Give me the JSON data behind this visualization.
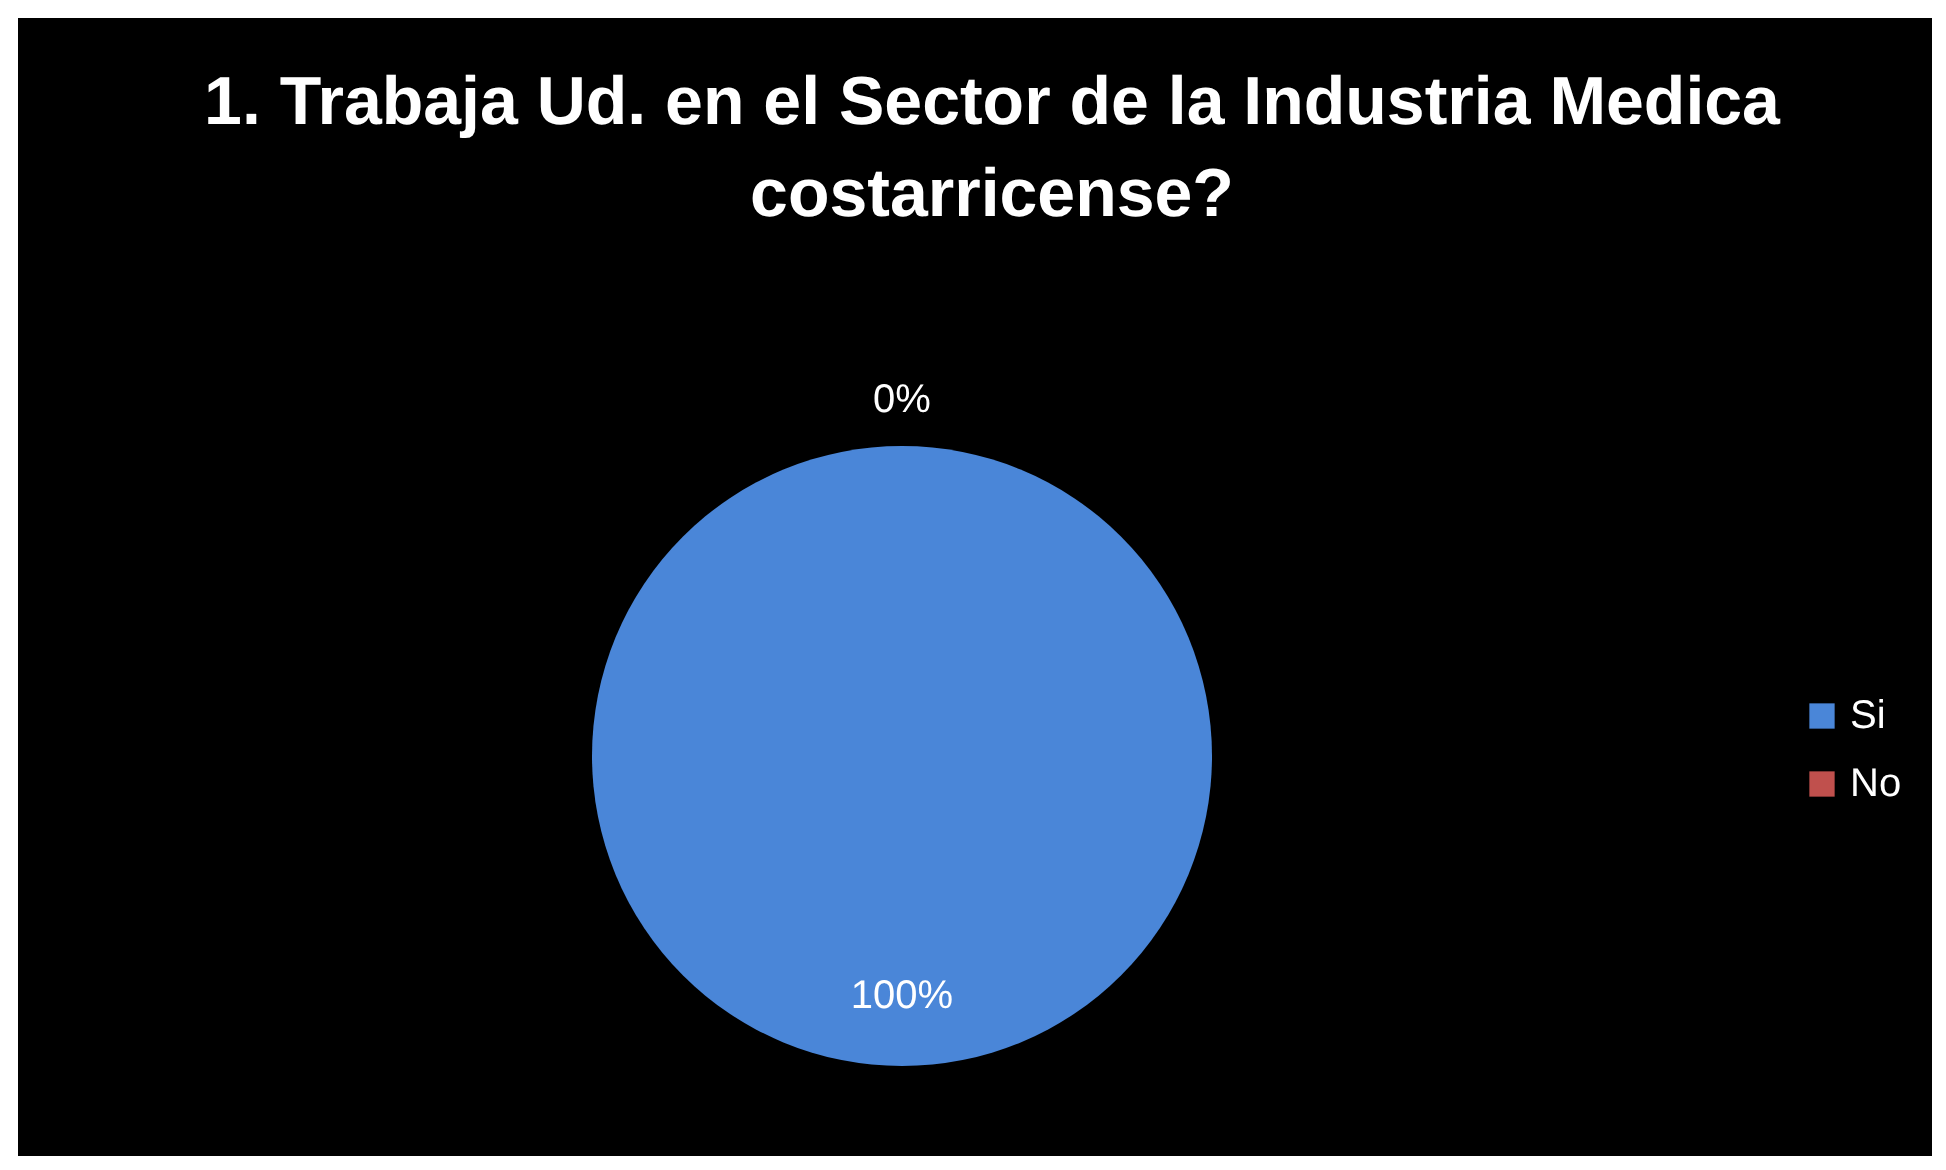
{
  "chart_data": {
    "type": "pie",
    "title": "1. Trabaja Ud. en el Sector de la Industria Medica costarricense?",
    "categories": [
      "Si",
      "No"
    ],
    "values": [
      100,
      0
    ],
    "colors": [
      "#4a86d8",
      "#c0504d"
    ],
    "value_labels": [
      "100%",
      "0%"
    ],
    "legend": "right"
  }
}
